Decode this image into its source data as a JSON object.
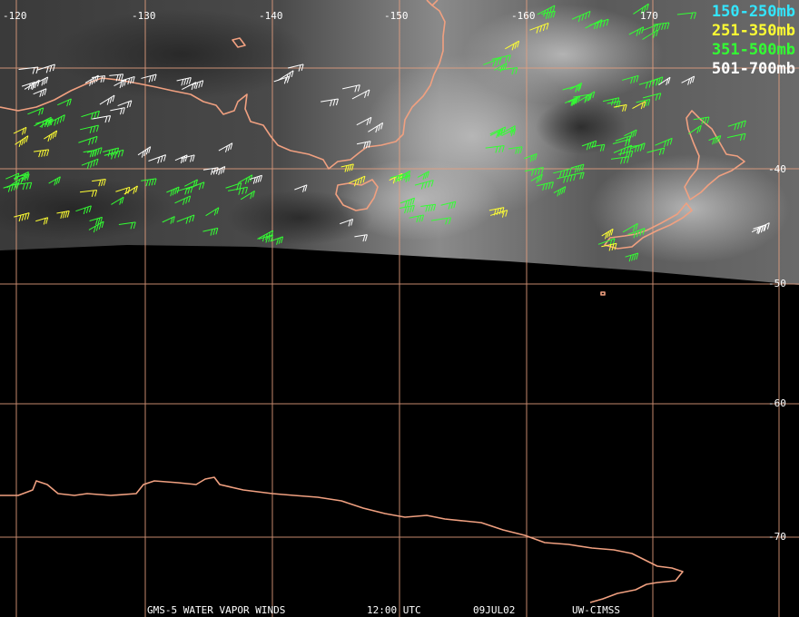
{
  "map": {
    "lon_labels": [
      "-120",
      "-130",
      "-140",
      "-150",
      "-160",
      "170"
    ],
    "lat_labels": [
      "-40",
      "-50",
      "-60",
      "-70"
    ],
    "legend": [
      {
        "label": "150-250mb",
        "color": "#33e6ff"
      },
      {
        "label": "251-350mb",
        "color": "#ffff33"
      },
      {
        "label": "351-500mb",
        "color": "#33ff33"
      },
      {
        "label": "501-700mb",
        "color": "#ffffff"
      }
    ],
    "colors": {
      "coastline": "#f0a080",
      "gridline": "#e6a080",
      "background": "#000000"
    }
  },
  "footer": {
    "product": "GMS-5 WATER VAPOR WINDS",
    "time": "12:00 UTC",
    "date": "09JUL02",
    "source": "UW-CIMSS"
  }
}
